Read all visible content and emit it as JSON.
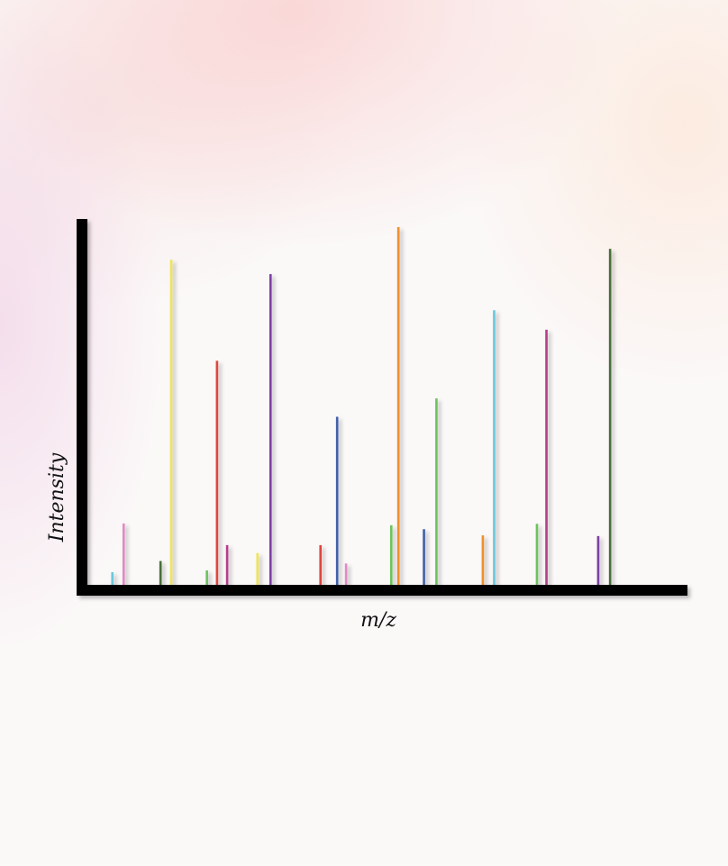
{
  "chart_data": {
    "type": "bar",
    "subtype": "stick-spectrum",
    "title": "",
    "xlabel": "m/z",
    "ylabel": "Intensity",
    "xlim": [
      0,
      100
    ],
    "ylim": [
      0,
      100
    ],
    "grid": false,
    "legend": "none",
    "peaks": [
      {
        "x": 4.2,
        "y": 3.5,
        "color": "#67c8dc"
      },
      {
        "x": 6.1,
        "y": 17,
        "color": "#e08ac4"
      },
      {
        "x": 12.3,
        "y": 6.6,
        "color": "#4a6e3a"
      },
      {
        "x": 14.1,
        "y": 90,
        "color": "#eee556"
      },
      {
        "x": 20.1,
        "y": 4,
        "color": "#6cc35c"
      },
      {
        "x": 21.8,
        "y": 62,
        "color": "#e0443e"
      },
      {
        "x": 23.5,
        "y": 11,
        "color": "#b63c8a"
      },
      {
        "x": 28.6,
        "y": 8.8,
        "color": "#eee556"
      },
      {
        "x": 30.8,
        "y": 86,
        "color": "#7b3fa6"
      },
      {
        "x": 39.2,
        "y": 11,
        "color": "#e0443e"
      },
      {
        "x": 42.0,
        "y": 46.5,
        "color": "#4060a8"
      },
      {
        "x": 43.5,
        "y": 5.9,
        "color": "#e08ac4"
      },
      {
        "x": 51.1,
        "y": 16.5,
        "color": "#6cc35c"
      },
      {
        "x": 52.3,
        "y": 99,
        "color": "#f0902c"
      },
      {
        "x": 56.6,
        "y": 15.4,
        "color": "#4060a8"
      },
      {
        "x": 58.7,
        "y": 51.6,
        "color": "#6cc35c"
      },
      {
        "x": 66.5,
        "y": 13.7,
        "color": "#f0902c"
      },
      {
        "x": 68.4,
        "y": 76,
        "color": "#67c8dc"
      },
      {
        "x": 75.6,
        "y": 16.9,
        "color": "#6cc35c"
      },
      {
        "x": 77.2,
        "y": 70.6,
        "color": "#b63c8a"
      },
      {
        "x": 85.9,
        "y": 13.5,
        "color": "#7b3fa6"
      },
      {
        "x": 87.9,
        "y": 93,
        "color": "#4a6e3a"
      }
    ]
  }
}
